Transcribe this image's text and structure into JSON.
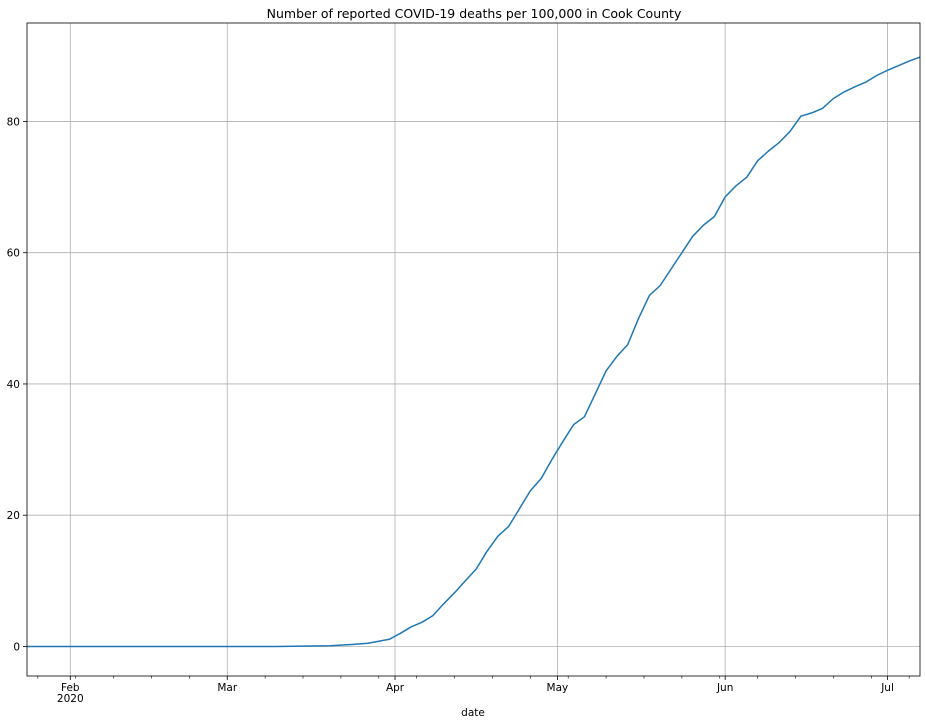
{
  "chart_data": {
    "type": "line",
    "title": "Number of reported COVID-19 deaths per 100,000 in Cook County",
    "xlabel": "date",
    "ylabel": "",
    "xlim": [
      "2020-01-24",
      "2020-07-07"
    ],
    "ylim": [
      -4.5,
      95
    ],
    "grid": true,
    "legend": "none",
    "x_ticks": [
      {
        "date": "2020-02-01",
        "label": "Feb",
        "sublabel": "2020"
      },
      {
        "date": "2020-03-01",
        "label": "Mar",
        "sublabel": ""
      },
      {
        "date": "2020-04-01",
        "label": "Apr",
        "sublabel": ""
      },
      {
        "date": "2020-05-01",
        "label": "May",
        "sublabel": ""
      },
      {
        "date": "2020-06-01",
        "label": "Jun",
        "sublabel": ""
      },
      {
        "date": "2020-07-01",
        "label": "Jul",
        "sublabel": ""
      }
    ],
    "y_ticks": [
      {
        "value": 0,
        "label": "0"
      },
      {
        "value": 20,
        "label": "20"
      },
      {
        "value": 40,
        "label": "40"
      },
      {
        "value": 60,
        "label": "60"
      },
      {
        "value": 80,
        "label": "80"
      }
    ],
    "series": [
      {
        "color": "#1f77b4",
        "points": [
          [
            "2020-01-24",
            0
          ],
          [
            "2020-02-15",
            0
          ],
          [
            "2020-03-10",
            0
          ],
          [
            "2020-03-15",
            0.05
          ],
          [
            "2020-03-20",
            0.1
          ],
          [
            "2020-03-24",
            0.3
          ],
          [
            "2020-03-27",
            0.5
          ],
          [
            "2020-03-29",
            0.8
          ],
          [
            "2020-03-31",
            1.1
          ],
          [
            "2020-04-02",
            2.0
          ],
          [
            "2020-04-04",
            3.0
          ],
          [
            "2020-04-06",
            3.7
          ],
          [
            "2020-04-08",
            4.7
          ],
          [
            "2020-04-10",
            6.5
          ],
          [
            "2020-04-12",
            8.2
          ],
          [
            "2020-04-14",
            10.0
          ],
          [
            "2020-04-16",
            11.8
          ],
          [
            "2020-04-18",
            14.5
          ],
          [
            "2020-04-20",
            16.8
          ],
          [
            "2020-04-22",
            18.3
          ],
          [
            "2020-04-24",
            21.0
          ],
          [
            "2020-04-26",
            23.7
          ],
          [
            "2020-04-28",
            25.6
          ],
          [
            "2020-04-30",
            28.5
          ],
          [
            "2020-05-02",
            31.2
          ],
          [
            "2020-05-04",
            33.8
          ],
          [
            "2020-05-06",
            35.0
          ],
          [
            "2020-05-08",
            38.5
          ],
          [
            "2020-05-10",
            42.0
          ],
          [
            "2020-05-12",
            44.2
          ],
          [
            "2020-05-14",
            46.0
          ],
          [
            "2020-05-16",
            50.0
          ],
          [
            "2020-05-18",
            53.5
          ],
          [
            "2020-05-20",
            55.0
          ],
          [
            "2020-05-22",
            57.5
          ],
          [
            "2020-05-24",
            60.0
          ],
          [
            "2020-05-26",
            62.5
          ],
          [
            "2020-05-28",
            64.2
          ],
          [
            "2020-05-30",
            65.5
          ],
          [
            "2020-06-01",
            68.5
          ],
          [
            "2020-06-03",
            70.2
          ],
          [
            "2020-06-05",
            71.5
          ],
          [
            "2020-06-07",
            74.0
          ],
          [
            "2020-06-09",
            75.5
          ],
          [
            "2020-06-11",
            76.8
          ],
          [
            "2020-06-13",
            78.5
          ],
          [
            "2020-06-15",
            80.8
          ],
          [
            "2020-06-17",
            81.3
          ],
          [
            "2020-06-19",
            82.0
          ],
          [
            "2020-06-21",
            83.5
          ],
          [
            "2020-06-23",
            84.5
          ],
          [
            "2020-06-25",
            85.3
          ],
          [
            "2020-06-27",
            86.0
          ],
          [
            "2020-06-29",
            87.0
          ],
          [
            "2020-07-01",
            87.8
          ],
          [
            "2020-07-03",
            88.5
          ],
          [
            "2020-07-05",
            89.2
          ],
          [
            "2020-07-07",
            89.8
          ]
        ]
      }
    ]
  }
}
